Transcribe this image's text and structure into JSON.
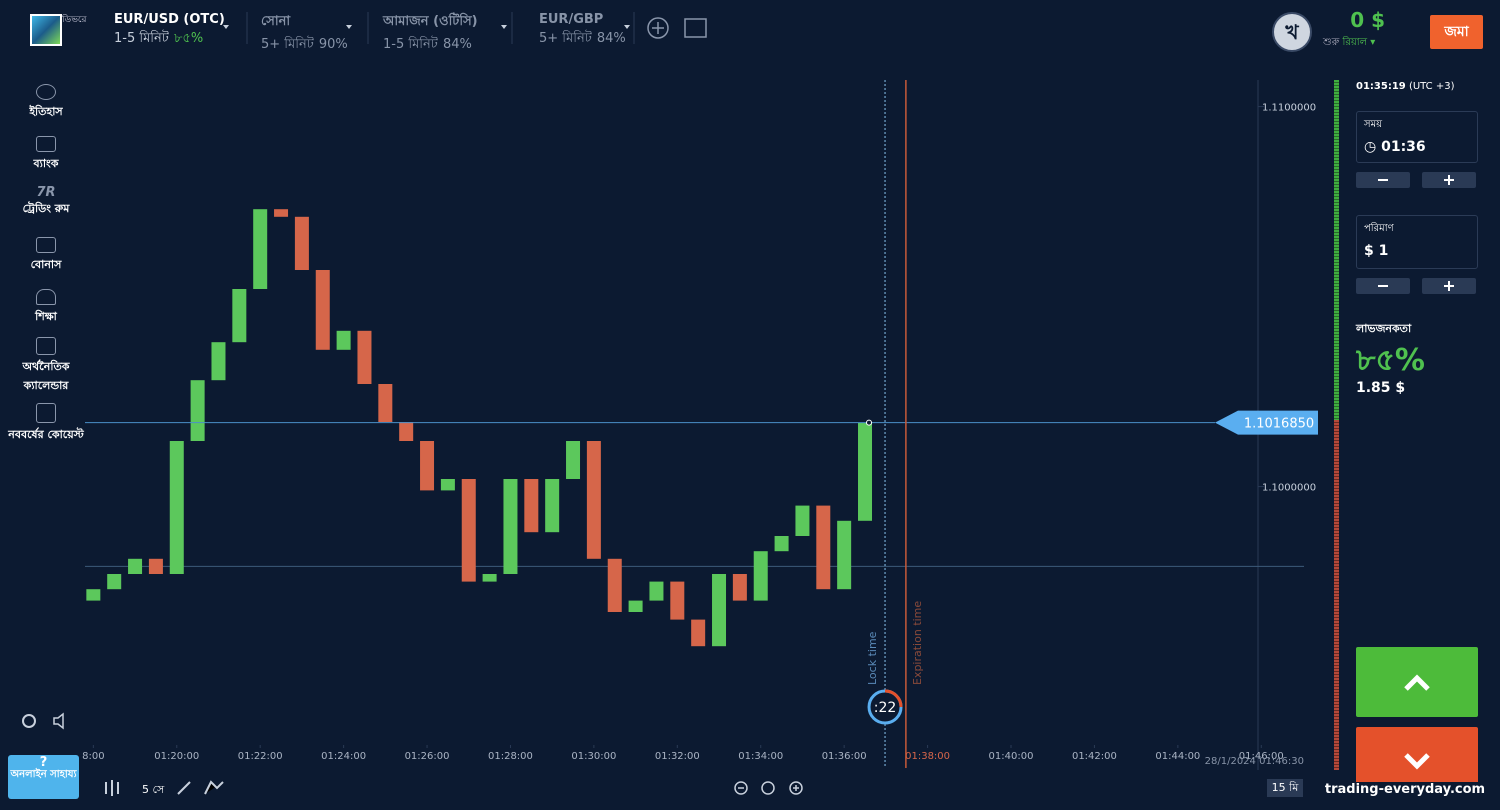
{
  "header": {
    "logo_text": "ডিভরে",
    "assets": [
      {
        "name": "EUR/USD (OTC)",
        "time": "1-5 মিনিট",
        "payout": "৮৫%"
      },
      {
        "name": "সোনা",
        "time": "5+ মিনিট",
        "payout": "90%"
      },
      {
        "name": "আমাজন (ওটিসি)",
        "time": "1-5 মিনিট",
        "payout": "84%"
      },
      {
        "name": "EUR/GBP",
        "time": "5+ মিনিট",
        "payout": "84%"
      }
    ],
    "balance": "0 $",
    "account_prefix": "শুরু",
    "account": "রিয়াল ▾",
    "avatar": "খ",
    "deposit": "জমা"
  },
  "sidebar": {
    "items": [
      "ইতিহাস",
      "ব্যাংক",
      "ট্রেডিং রুম",
      "বোনাস",
      "শিক্ষা",
      "অর্থনৈতিক ক্যালেন্ডার",
      "নববর্ষের কোয়েস্ট"
    ],
    "trading_room_icon": "7R",
    "help_icon": "?",
    "help": "অনলাইন সাহায্য"
  },
  "panel": {
    "clock": "01:35:19",
    "timezone": "(UTC +3)",
    "time_label": "সময়",
    "time_value": "01:36",
    "amount_label": "পরিমাণ",
    "amount_value": "$ 1",
    "profit_label": "লাভজনকতা",
    "profit_pct": "৮৫%",
    "profit_amount": "1.85 $"
  },
  "toolbar": {
    "interval": "5 সে",
    "timeframe": "15 মি"
  },
  "watermark": "trading-everyday.com",
  "chart_data": {
    "type": "candlestick",
    "x": [
      18,
      18.5,
      19,
      19.5,
      20,
      20.5,
      21,
      21.5,
      22,
      22.5,
      23,
      23.5,
      24,
      24.5,
      25,
      25.5,
      26,
      26.5,
      27,
      27.5,
      28,
      28.5,
      29,
      29.5,
      30,
      30.5,
      31,
      31.5,
      32,
      32.5,
      33,
      33.5,
      34,
      34.5,
      35,
      35.5,
      36,
      36.5
    ],
    "open": [
      1.097,
      1.0973,
      1.0977,
      1.0981,
      1.0977,
      1.1012,
      1.1028,
      1.1038,
      1.1052,
      1.1073,
      1.1071,
      1.1057,
      1.1036,
      1.1041,
      1.1027,
      1.1017,
      1.1012,
      1.0999,
      1.1002,
      1.0975,
      1.0977,
      1.1002,
      1.0988,
      1.1002,
      1.1012,
      1.0981,
      1.0967,
      1.097,
      1.0975,
      1.0965,
      1.0958,
      1.0977,
      1.097,
      1.0983,
      1.0987,
      1.0995,
      1.0973,
      1.0991
    ],
    "close": [
      1.0973,
      1.0977,
      1.0981,
      1.0977,
      1.1012,
      1.1028,
      1.1038,
      1.1052,
      1.1073,
      1.1071,
      1.1057,
      1.1036,
      1.1041,
      1.1027,
      1.1017,
      1.1012,
      1.0999,
      1.1002,
      1.0975,
      1.0977,
      1.1002,
      1.0988,
      1.1002,
      1.1012,
      1.0981,
      1.0967,
      1.097,
      1.0975,
      1.0965,
      1.0958,
      1.0977,
      1.097,
      1.0983,
      1.0987,
      1.0995,
      1.0973,
      1.0991,
      1.101685
    ],
    "colors": {
      "up": "#5cc85c",
      "down": "#d6664a"
    },
    "ylim": [
      1.0932,
      1.1107
    ],
    "yticks": [
      {
        "value": 1.11,
        "label": "1.1100000"
      },
      {
        "value": 1.1,
        "label": "1.1000000"
      }
    ],
    "xlim": [
      17.8,
      47.36
    ],
    "xticks": [
      {
        "value": 18,
        "label": "8:00"
      },
      {
        "value": 20,
        "label": "01:20:00"
      },
      {
        "value": 22,
        "label": "01:22:00"
      },
      {
        "value": 24,
        "label": "01:24:00"
      },
      {
        "value": 26,
        "label": "01:26:00"
      },
      {
        "value": 28,
        "label": "01:28:00"
      },
      {
        "value": 30,
        "label": "01:30:00"
      },
      {
        "value": 32,
        "label": "01:32:00"
      },
      {
        "value": 34,
        "label": "01:34:00"
      },
      {
        "value": 36,
        "label": "01:36:00"
      },
      {
        "value": 38,
        "label": "01:38:00"
      },
      {
        "value": 40,
        "label": "01:40:00"
      },
      {
        "value": 42,
        "label": "01:42:00"
      },
      {
        "value": 44,
        "label": "01:44:00"
      },
      {
        "value": 46,
        "label": "01:46:00"
      }
    ],
    "price_label": "1.1016850",
    "level": 1.0979,
    "lock_time": 36.98,
    "expiration_time": 37.48,
    "lock_label": "Lock time",
    "expiration_label": "Expiration time",
    "timer": ":22",
    "timestamp": "28/1/2024 01:46:30"
  }
}
